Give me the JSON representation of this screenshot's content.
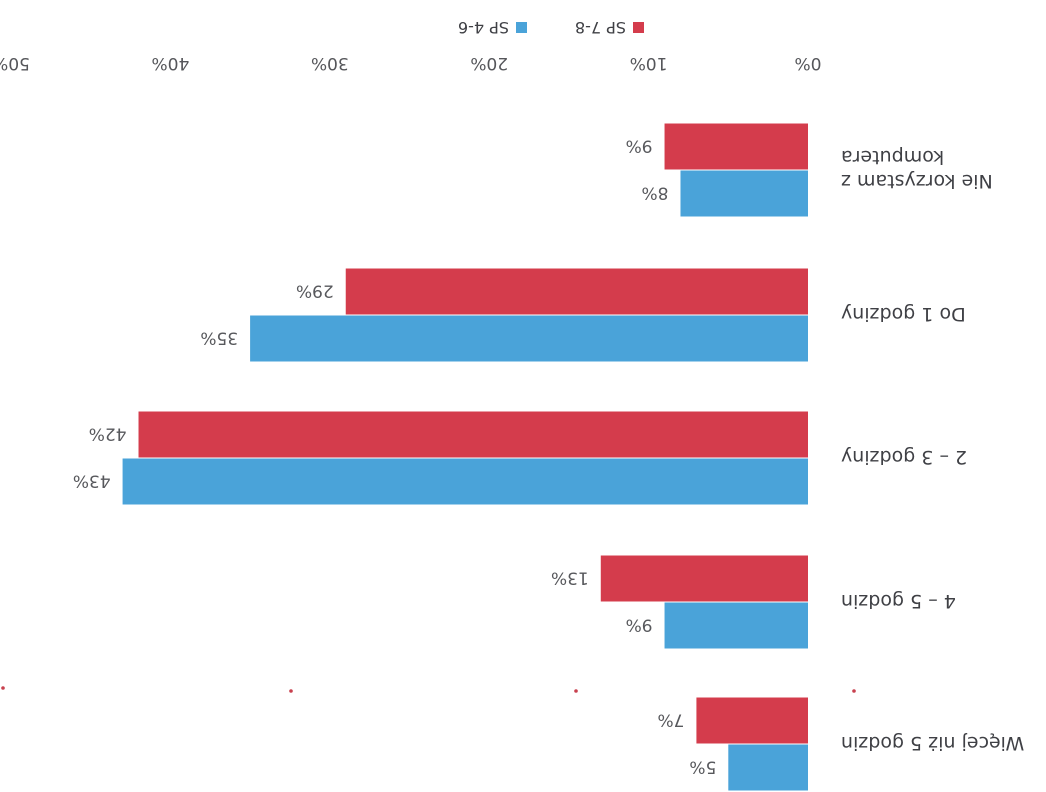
{
  "chart_data": {
    "type": "bar",
    "orientation": "horizontal",
    "categories": [
      [
        "Więcej niż 5 godzin"
      ],
      [
        "4 – 5 godzin"
      ],
      [
        "2 – 3 godziny"
      ],
      [
        "Do 1 godziny"
      ],
      [
        "Nie korzystam z",
        "komputera"
      ]
    ],
    "series": [
      {
        "name": "SP 4-6",
        "color": "#4aa3d9",
        "values": [
          5,
          9,
          43,
          35,
          8
        ]
      },
      {
        "name": "SP 7-8",
        "color": "#d43c4c",
        "values": [
          7,
          13,
          42,
          29,
          9
        ]
      }
    ],
    "value_labels": [
      [
        "5%",
        "9%",
        "43%",
        "35%",
        "8%"
      ],
      [
        "7%",
        "13%",
        "42%",
        "29%",
        "9%"
      ]
    ],
    "x_ticks": [
      0,
      10,
      20,
      30,
      40,
      50
    ],
    "x_tick_labels": [
      "0%",
      "10%",
      "20%",
      "30%",
      "40%",
      "50%"
    ],
    "xlim": [
      0,
      50
    ],
    "grid": false,
    "legend_position": "bottom",
    "orientation_note": "image is rotated 180 degrees"
  }
}
